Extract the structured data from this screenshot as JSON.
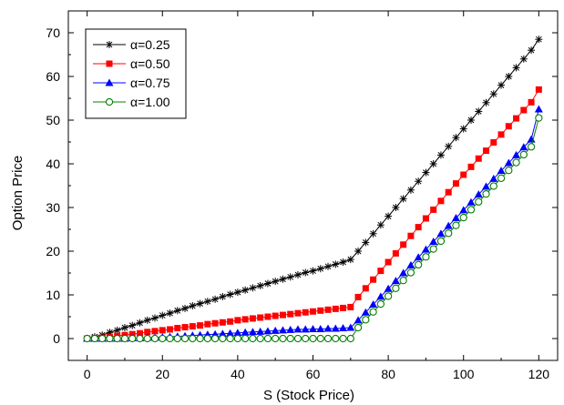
{
  "chart_data": {
    "type": "line",
    "title": "",
    "xlabel": "S (Stock Price)",
    "ylabel": "Option Price",
    "xlim": [
      -5,
      125
    ],
    "ylim": [
      -5,
      75
    ],
    "xticks": [
      0,
      20,
      40,
      60,
      80,
      100,
      120
    ],
    "yticks": [
      0,
      10,
      20,
      30,
      40,
      50,
      60,
      70
    ],
    "xtick_labels": [
      "0",
      "20",
      "40",
      "60",
      "80",
      "100",
      "120"
    ],
    "ytick_labels": [
      "0",
      "10",
      "20",
      "30",
      "40",
      "50",
      "60",
      "70"
    ],
    "grid": false,
    "legend_position": "top-left",
    "x": [
      0,
      2,
      4,
      6,
      8,
      10,
      12,
      14,
      16,
      18,
      20,
      22,
      24,
      26,
      28,
      30,
      32,
      34,
      36,
      38,
      40,
      42,
      44,
      46,
      48,
      50,
      52,
      54,
      56,
      58,
      60,
      62,
      64,
      66,
      68,
      70,
      72,
      74,
      76,
      78,
      80,
      82,
      84,
      86,
      88,
      90,
      92,
      94,
      96,
      98,
      100,
      102,
      104,
      106,
      108,
      110,
      112,
      114,
      116,
      118,
      120
    ],
    "series": [
      {
        "name": "α=0.25",
        "color": "#000000",
        "marker": "star",
        "values": [
          0,
          0.4,
          0.8,
          1.4,
          1.9,
          2.5,
          3.0,
          3.6,
          4.2,
          4.7,
          5.3,
          5.8,
          6.4,
          6.9,
          7.5,
          8.0,
          8.5,
          9.0,
          9.6,
          10.1,
          10.6,
          11.1,
          11.6,
          12.1,
          12.6,
          13.1,
          13.6,
          14.1,
          14.6,
          15.1,
          15.5,
          16.0,
          16.5,
          17.0,
          17.5,
          18.1,
          20.0,
          22.0,
          24.0,
          26.0,
          28.0,
          30.0,
          32.0,
          34.0,
          36.0,
          38.0,
          40.0,
          42.0,
          44.0,
          46.0,
          48.0,
          50.0,
          52.0,
          54.0,
          56.0,
          58.0,
          60.0,
          62.0,
          64.0,
          66.0,
          68.5
        ]
      },
      {
        "name": "α=0.50",
        "color": "#ff0000",
        "marker": "square",
        "values": [
          0,
          0.1,
          0.2,
          0.4,
          0.6,
          0.8,
          1.0,
          1.2,
          1.5,
          1.7,
          1.9,
          2.1,
          2.4,
          2.6,
          2.8,
          3.0,
          3.3,
          3.5,
          3.7,
          3.9,
          4.2,
          4.4,
          4.6,
          4.8,
          5.0,
          5.2,
          5.4,
          5.6,
          5.8,
          6.0,
          6.2,
          6.4,
          6.6,
          6.8,
          7.0,
          7.2,
          9.5,
          11.5,
          13.5,
          15.5,
          17.5,
          19.5,
          21.5,
          23.5,
          25.5,
          27.5,
          29.5,
          31.5,
          33.5,
          35.5,
          37.5,
          39.3,
          41.2,
          43.0,
          44.9,
          46.7,
          48.6,
          50.4,
          52.3,
          54.1,
          57.0
        ]
      },
      {
        "name": "α=0.75",
        "color": "#0000ff",
        "marker": "triangle",
        "values": [
          0,
          0,
          0,
          0,
          0,
          0,
          0.1,
          0.1,
          0.2,
          0.2,
          0.3,
          0.4,
          0.5,
          0.6,
          0.7,
          0.8,
          0.9,
          1.0,
          1.1,
          1.2,
          1.3,
          1.4,
          1.5,
          1.6,
          1.7,
          1.8,
          1.9,
          2.0,
          2.1,
          2.1,
          2.2,
          2.2,
          2.3,
          2.3,
          2.4,
          2.5,
          4.2,
          6.0,
          7.8,
          9.6,
          11.4,
          13.2,
          15.0,
          16.8,
          18.6,
          20.4,
          22.2,
          24.0,
          25.8,
          27.6,
          29.4,
          31.2,
          33.0,
          34.8,
          36.6,
          38.4,
          40.2,
          42.0,
          43.8,
          45.6,
          52.5
        ]
      },
      {
        "name": "α=1.00",
        "color": "#008000",
        "marker": "circle-open",
        "values": [
          0,
          0,
          0,
          0,
          0,
          0,
          0,
          0,
          0,
          0,
          0,
          0,
          0,
          0,
          0,
          0,
          0,
          0,
          0,
          0,
          0,
          0,
          0,
          0,
          0,
          0,
          0,
          0,
          0,
          0,
          0,
          0,
          0,
          0,
          0,
          0,
          2.5,
          4.3,
          6.1,
          7.9,
          9.7,
          11.5,
          13.3,
          15.1,
          16.9,
          18.7,
          20.5,
          22.3,
          24.1,
          25.9,
          27.7,
          29.5,
          31.3,
          33.1,
          34.9,
          36.7,
          38.5,
          40.3,
          42.1,
          43.9,
          50.5
        ]
      }
    ]
  }
}
